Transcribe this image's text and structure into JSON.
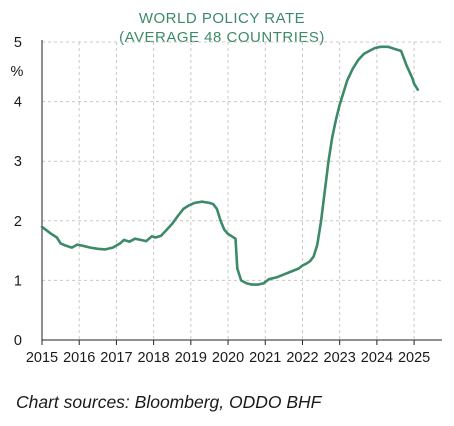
{
  "colors": {
    "line": "#3d8a68",
    "title": "#3d8a68",
    "grid": "#c8c8c8",
    "axis": "#222222"
  },
  "source_text": "Chart sources: Bloomberg, ODDO BHF",
  "chart_data": {
    "type": "line",
    "title": "WORLD POLICY RATE",
    "subtitle": "(AVERAGE 48 COUNTRIES)",
    "ylabel": "%",
    "xlabel": "",
    "xlim": [
      2015,
      2025.75
    ],
    "ylim": [
      0,
      5
    ],
    "grid": true,
    "x_ticks": [
      "2015",
      "2016",
      "2017",
      "2018",
      "2019",
      "2020",
      "2021",
      "2022",
      "2023",
      "2024",
      "2025"
    ],
    "y_ticks": [
      "0",
      "1",
      "2",
      "3",
      "4",
      "5"
    ],
    "series": [
      {
        "x": [
          2015.0,
          2015.1,
          2015.25,
          2015.4,
          2015.5,
          2015.65,
          2015.8,
          2015.95,
          2016.1,
          2016.3,
          2016.5,
          2016.7,
          2016.9,
          2017.1,
          2017.2,
          2017.35,
          2017.5,
          2017.65,
          2017.8,
          2017.95,
          2018.05,
          2018.2,
          2018.35,
          2018.5,
          2018.65,
          2018.8,
          2018.95,
          2019.1,
          2019.3,
          2019.5,
          2019.6,
          2019.7,
          2019.8,
          2019.9,
          2020.0,
          2020.1,
          2020.2,
          2020.25,
          2020.35,
          2020.5,
          2020.65,
          2020.8,
          2020.95,
          2021.1,
          2021.3,
          2021.5,
          2021.7,
          2021.9,
          2022.0,
          2022.1,
          2022.2,
          2022.3,
          2022.4,
          2022.5,
          2022.6,
          2022.7,
          2022.8,
          2022.9,
          2023.0,
          2023.1,
          2023.2,
          2023.35,
          2023.5,
          2023.65,
          2023.8,
          2023.95,
          2024.1,
          2024.3,
          2024.5,
          2024.65,
          2024.8,
          2024.95,
          2025.0,
          2025.1
        ],
        "values": [
          1.9,
          1.85,
          1.78,
          1.72,
          1.62,
          1.58,
          1.55,
          1.6,
          1.58,
          1.55,
          1.53,
          1.52,
          1.55,
          1.62,
          1.68,
          1.65,
          1.7,
          1.68,
          1.66,
          1.74,
          1.72,
          1.75,
          1.85,
          1.95,
          2.08,
          2.2,
          2.26,
          2.3,
          2.32,
          2.3,
          2.28,
          2.2,
          2.0,
          1.85,
          1.78,
          1.74,
          1.7,
          1.2,
          1.0,
          0.95,
          0.93,
          0.93,
          0.95,
          1.02,
          1.05,
          1.1,
          1.15,
          1.2,
          1.25,
          1.28,
          1.32,
          1.4,
          1.6,
          2.0,
          2.5,
          3.0,
          3.4,
          3.7,
          3.95,
          4.15,
          4.35,
          4.55,
          4.7,
          4.8,
          4.85,
          4.9,
          4.92,
          4.92,
          4.88,
          4.85,
          4.6,
          4.4,
          4.3,
          4.2
        ]
      }
    ]
  }
}
